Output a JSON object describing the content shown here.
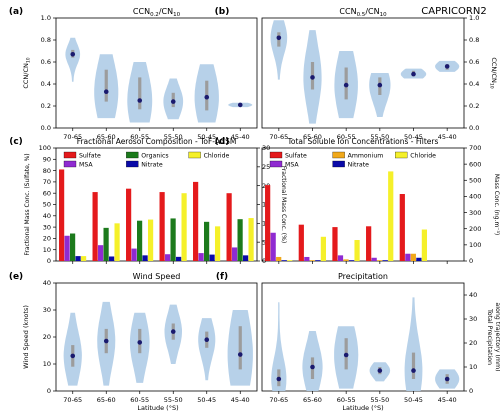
{
  "figure": {
    "campaign": "CAPRICORN2",
    "xlabel": "Latitude (°S)",
    "lat_bins": [
      "70-65",
      "65-60",
      "60-55",
      "55-50",
      "50-45",
      "45-40"
    ]
  },
  "colors": {
    "violin": "#b3cfe8",
    "iqr": "#9c9c9c",
    "median": "#1a1a6e",
    "sulfate": "#e41a1c",
    "msa": "#8f2bd1",
    "organics": "#1c7a1c",
    "nitrate": "#0a0aa8",
    "chloride": "#f5f02a",
    "ammonium": "#f0a81a"
  },
  "chart_data": [
    {
      "panel": "a",
      "type": "violin",
      "title": "CCN0.2/CN10",
      "ylabel": "CCN/CN10",
      "ylim": [
        0,
        1.0
      ],
      "yticks": [
        0,
        0.2,
        0.4,
        0.6,
        0.8,
        1.0
      ],
      "ytick_labels": [
        "0.0",
        "0.2",
        "0.4",
        "0.6",
        "0.8",
        "1.0"
      ],
      "y_axis_side": "left",
      "categories": [
        "70-65",
        "65-60",
        "60-55",
        "55-50",
        "50-45",
        "45-40"
      ],
      "medians": [
        0.67,
        0.33,
        0.25,
        0.24,
        0.28,
        0.21
      ],
      "q1": [
        0.64,
        0.24,
        0.17,
        0.19,
        0.16,
        0.2
      ],
      "q3": [
        0.71,
        0.53,
        0.46,
        0.32,
        0.43,
        0.22
      ],
      "min": [
        0.42,
        0.09,
        0.05,
        0.08,
        0.05,
        0.19
      ],
      "max": [
        0.82,
        0.67,
        0.6,
        0.45,
        0.58,
        0.23
      ]
    },
    {
      "panel": "b",
      "type": "violin",
      "title": "CCN0.5/CN10",
      "ylabel": "CCN/CN10",
      "ylim": [
        0,
        1.0
      ],
      "yticks": [
        0,
        0.2,
        0.4,
        0.6,
        0.8,
        1.0
      ],
      "ytick_labels": [
        "0.0",
        "0.2",
        "0.4",
        "0.6",
        "0.8",
        "1.0"
      ],
      "y_axis_side": "right",
      "categories": [
        "70-65",
        "65-60",
        "60-55",
        "55-50",
        "50-45",
        "45-40"
      ],
      "medians": [
        0.82,
        0.46,
        0.39,
        0.39,
        0.49,
        0.56
      ],
      "q1": [
        0.74,
        0.35,
        0.26,
        0.3,
        0.47,
        0.53
      ],
      "q3": [
        0.87,
        0.6,
        0.55,
        0.46,
        0.52,
        0.58
      ],
      "min": [
        0.44,
        0.04,
        0.09,
        0.1,
        0.45,
        0.51
      ],
      "max": [
        0.98,
        0.89,
        0.7,
        0.5,
        0.54,
        0.61
      ]
    },
    {
      "panel": "c",
      "type": "bar",
      "title": "Fractional Aerosol Composition - ToF-ACSM",
      "ylabel": "Fractional Mass Conc. (Sulfate, %)",
      "y2label": "Fractional Mass Conc. (%)",
      "ylim": [
        0,
        100
      ],
      "yticks": [
        0,
        10,
        20,
        30,
        40,
        50,
        60,
        70,
        80,
        90,
        100
      ],
      "y2lim": [
        0,
        30
      ],
      "y2ticks": [
        0,
        5,
        10,
        15,
        20,
        25,
        30
      ],
      "categories": [
        "70-65",
        "65-60",
        "60-55",
        "55-50",
        "50-45",
        "45-40"
      ],
      "series": [
        {
          "name": "Sulfate",
          "axis": "left",
          "color_key": "sulfate",
          "values": [
            81,
            61,
            64,
            61,
            70,
            60
          ]
        },
        {
          "name": "MSA",
          "axis": "right",
          "color_key": "msa",
          "values": [
            6.7,
            4.2,
            3.3,
            1.8,
            2.1,
            3.6
          ]
        },
        {
          "name": "Organics",
          "axis": "right",
          "color_key": "organics",
          "values": [
            7.3,
            8.8,
            10.7,
            11.3,
            10.4,
            11.1
          ]
        },
        {
          "name": "Nitrate",
          "axis": "right",
          "color_key": "nitrate",
          "values": [
            1.3,
            1.2,
            1.5,
            1.1,
            1.7,
            1.5
          ]
        },
        {
          "name": "Chloride",
          "axis": "right",
          "color_key": "chloride",
          "values": [
            1.3,
            10.0,
            11.0,
            18.0,
            9.2,
            11.4
          ]
        }
      ],
      "legend": [
        "Sulfate",
        "Organics",
        "Chloride",
        "MSA",
        "Nitrate"
      ]
    },
    {
      "panel": "d",
      "type": "bar",
      "title": "Total Soluble Ion Concentrations - Filters",
      "y2label": "Mass Conc. (ng.m⁻³)",
      "y2lim": [
        0,
        700
      ],
      "y2ticks": [
        0,
        100,
        200,
        300,
        400,
        500,
        600,
        700
      ],
      "categories": [
        "70-65",
        "65-60",
        "60-55",
        "55-50",
        "50-45",
        "45-40"
      ],
      "series": [
        {
          "name": "Sulfate",
          "color_key": "sulfate",
          "values": [
            470,
            225,
            210,
            215,
            415,
            0
          ]
        },
        {
          "name": "MSA",
          "color_key": "msa",
          "values": [
            175,
            25,
            35,
            20,
            45,
            0
          ]
        },
        {
          "name": "Ammonium",
          "color_key": "ammonium",
          "values": [
            25,
            5,
            10,
            5,
            45,
            0
          ]
        },
        {
          "name": "Nitrate",
          "color_key": "nitrate",
          "values": [
            5,
            5,
            5,
            5,
            20,
            0
          ]
        },
        {
          "name": "Chloride",
          "color_key": "chloride",
          "values": [
            5,
            150,
            130,
            555,
            195,
            0
          ]
        }
      ],
      "legend": [
        "Sulfate",
        "Ammonium",
        "Chloride",
        "MSA",
        "Nitrate"
      ]
    },
    {
      "panel": "e",
      "type": "violin",
      "title": "Wind Speed",
      "ylabel": "Wind Speed (knots)",
      "ylim": [
        0,
        40
      ],
      "yticks": [
        0,
        10,
        20,
        30,
        40
      ],
      "ytick_labels": [
        "0",
        "10",
        "20",
        "30",
        "40"
      ],
      "y_axis_side": "left",
      "categories": [
        "70-65",
        "65-60",
        "60-55",
        "55-50",
        "50-45",
        "45-40"
      ],
      "medians": [
        13,
        18.5,
        18,
        22,
        19,
        13.5
      ],
      "q1": [
        9,
        14,
        14,
        19,
        16,
        8
      ],
      "q3": [
        17,
        23,
        23,
        25,
        22,
        24
      ],
      "min": [
        2,
        2,
        3,
        10,
        4,
        2
      ],
      "max": [
        29,
        33,
        29,
        32,
        27,
        30
      ]
    },
    {
      "panel": "f",
      "type": "violin",
      "title": "Precipitation",
      "ylabel": "Total Precipitation along trajectory (mm)",
      "ylim": [
        0,
        45
      ],
      "yticks": [
        0,
        10,
        20,
        30,
        40
      ],
      "ytick_labels": [
        "0",
        "10",
        "20",
        "30",
        "40"
      ],
      "y_axis_side": "right",
      "categories": [
        "70-65",
        "65-60",
        "60-55",
        "55-50",
        "50-45",
        "45-40"
      ],
      "medians": [
        5,
        10,
        15,
        8.5,
        8.5,
        5
      ],
      "q1": [
        2,
        5,
        9,
        7,
        5,
        3
      ],
      "q3": [
        9,
        14,
        22,
        10,
        16,
        7
      ],
      "min": [
        0,
        0,
        1,
        4,
        0,
        1
      ],
      "max": [
        37,
        25,
        27,
        12,
        39,
        9
      ]
    }
  ]
}
